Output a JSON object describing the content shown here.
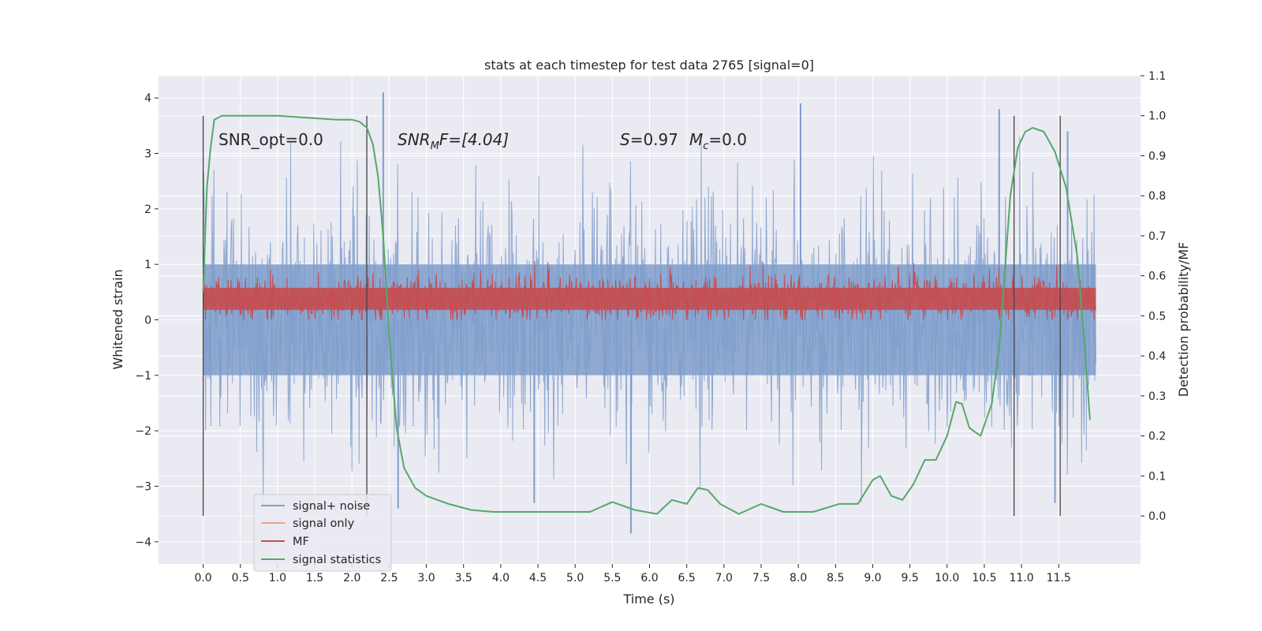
{
  "chart_data": {
    "type": "line",
    "title": "stats at each timestep for test data 2765 [signal=0]",
    "xlabel": "Time (s)",
    "ylabel": "Whitened strain",
    "ylabel_right": "Detection probability/MF",
    "xlim": [
      -0.6,
      12.6
    ],
    "ylim": [
      -4.4,
      4.4
    ],
    "ylim_right": [
      -0.12,
      1.1
    ],
    "x_ticks": [
      "0.0",
      "0.5",
      "1.0",
      "1.5",
      "2.0",
      "2.5",
      "3.0",
      "3.5",
      "4.0",
      "4.5",
      "5.0",
      "5.5",
      "6.0",
      "6.5",
      "7.0",
      "7.5",
      "8.0",
      "8.5",
      "9.0",
      "9.5",
      "10.0",
      "10.5",
      "11.0",
      "11.5"
    ],
    "y_ticks": [
      "−4",
      "−3",
      "−2",
      "−1",
      "0",
      "1",
      "2",
      "3",
      "4"
    ],
    "y_ticks_right": [
      "0.0",
      "0.1",
      "0.2",
      "0.3",
      "0.4",
      "0.5",
      "0.6",
      "0.7",
      "0.8",
      "0.9",
      "1.0",
      "1.1"
    ],
    "grid": true,
    "legend_position": "lower-left",
    "annotations": {
      "snr_opt": "SNR_opt=0.0",
      "snr_mf_base": "SNR",
      "snr_mf_sub": "M",
      "snr_mf_rest": "F=[4.04]",
      "s_label": "S",
      "s_value": "=0.97",
      "mc_label": "M",
      "mc_sub": "c",
      "mc_value": "=0.0"
    },
    "vertical_markers": [
      0.0,
      2.2,
      10.9,
      11.52
    ],
    "noise_region": {
      "x_start": 0.0,
      "x_end": 12.0
    },
    "series": [
      {
        "name": "signal+ noise",
        "axis": "left",
        "color": "#7f9dcb",
        "style": "dense noise, roughly Gaussian, range about −3.9 to 4.1",
        "peaks": [
          {
            "x": 2.42,
            "y": 4.1
          },
          {
            "x": 8.03,
            "y": 3.9
          },
          {
            "x": 10.7,
            "y": 3.8
          },
          {
            "x": 11.62,
            "y": 3.4
          },
          {
            "x": 5.75,
            "y": -3.85
          },
          {
            "x": 2.62,
            "y": -3.4
          },
          {
            "x": 11.45,
            "y": -3.3
          },
          {
            "x": 4.45,
            "y": -3.3
          }
        ]
      },
      {
        "name": "signal only",
        "axis": "left",
        "color": "#e8a58b",
        "values_note": "zero throughout"
      },
      {
        "name": "MF",
        "axis": "right",
        "color": "#c44e52",
        "style": "dense noise band between about 0.48 and 0.62, peak near 0.65"
      },
      {
        "name": "signal statistics",
        "axis": "right",
        "color": "#55a868",
        "x": [
          0.0,
          0.05,
          0.1,
          0.15,
          0.25,
          0.4,
          0.6,
          1.0,
          1.4,
          1.8,
          2.0,
          2.1,
          2.2,
          2.28,
          2.35,
          2.42,
          2.5,
          2.6,
          2.7,
          2.85,
          3.0,
          3.3,
          3.6,
          3.9,
          4.3,
          4.8,
          5.2,
          5.5,
          5.8,
          6.1,
          6.3,
          6.5,
          6.65,
          6.78,
          6.95,
          7.2,
          7.5,
          7.8,
          8.2,
          8.55,
          8.8,
          9.0,
          9.1,
          9.25,
          9.4,
          9.55,
          9.7,
          9.85,
          10.0,
          10.12,
          10.2,
          10.3,
          10.45,
          10.6,
          10.7,
          10.78,
          10.85,
          10.95,
          11.05,
          11.15,
          11.3,
          11.45,
          11.6,
          11.75,
          11.85,
          11.92
        ],
        "y": [
          0.56,
          0.82,
          0.92,
          0.99,
          1.0,
          1.0,
          1.0,
          1.0,
          0.995,
          0.99,
          0.99,
          0.985,
          0.97,
          0.93,
          0.85,
          0.7,
          0.45,
          0.22,
          0.12,
          0.07,
          0.05,
          0.03,
          0.015,
          0.01,
          0.01,
          0.01,
          0.01,
          0.035,
          0.015,
          0.005,
          0.04,
          0.03,
          0.07,
          0.065,
          0.03,
          0.005,
          0.03,
          0.01,
          0.01,
          0.03,
          0.03,
          0.09,
          0.1,
          0.05,
          0.04,
          0.08,
          0.14,
          0.14,
          0.2,
          0.285,
          0.28,
          0.22,
          0.2,
          0.28,
          0.42,
          0.62,
          0.8,
          0.92,
          0.96,
          0.97,
          0.96,
          0.91,
          0.82,
          0.65,
          0.42,
          0.24
        ]
      }
    ]
  }
}
